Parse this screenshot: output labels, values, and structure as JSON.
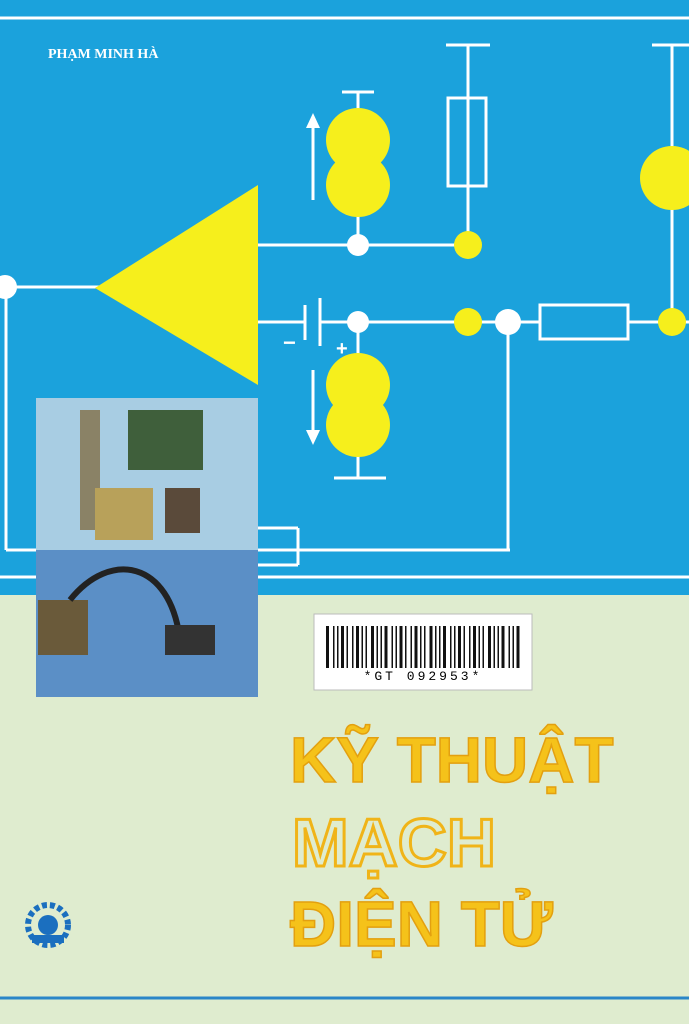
{
  "cover": {
    "author": "PHẠM MINH HÀ",
    "barcode": "*GT 092953*",
    "title": [
      "KỸ THUẬT",
      "MẠCH",
      "ĐIỆN TỬ"
    ]
  }
}
